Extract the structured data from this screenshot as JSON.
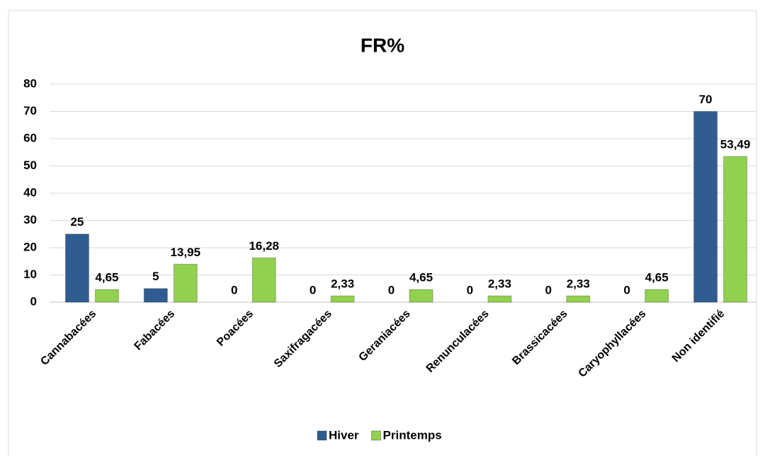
{
  "chart_data": {
    "type": "bar",
    "title": "FR%",
    "categories": [
      "Cannabacées",
      "Fabacées",
      "Poacées",
      "Saxifragacées",
      "Geraniacées",
      "Renunculacées",
      "Brassicacées",
      "Caryophyllacées",
      "Non identifié"
    ],
    "series": [
      {
        "name": "Hiver",
        "color": "#2f5d91",
        "values": [
          25,
          5,
          0,
          0,
          0,
          0,
          0,
          0,
          70
        ]
      },
      {
        "name": "Printemps",
        "color": "#92d050",
        "values": [
          4.65,
          13.95,
          16.28,
          2.33,
          4.65,
          2.33,
          2.33,
          4.65,
          53.49
        ],
        "value_labels": [
          "4,65",
          "13,95",
          "16,28",
          "2,33",
          "4,65",
          "2,33",
          "2,33",
          "4,65",
          "53,49"
        ]
      }
    ],
    "ylim": [
      0,
      80
    ],
    "yticks": [
      0,
      10,
      20,
      30,
      40,
      50,
      60,
      70,
      80
    ],
    "grid": true,
    "legend": "bottom"
  }
}
